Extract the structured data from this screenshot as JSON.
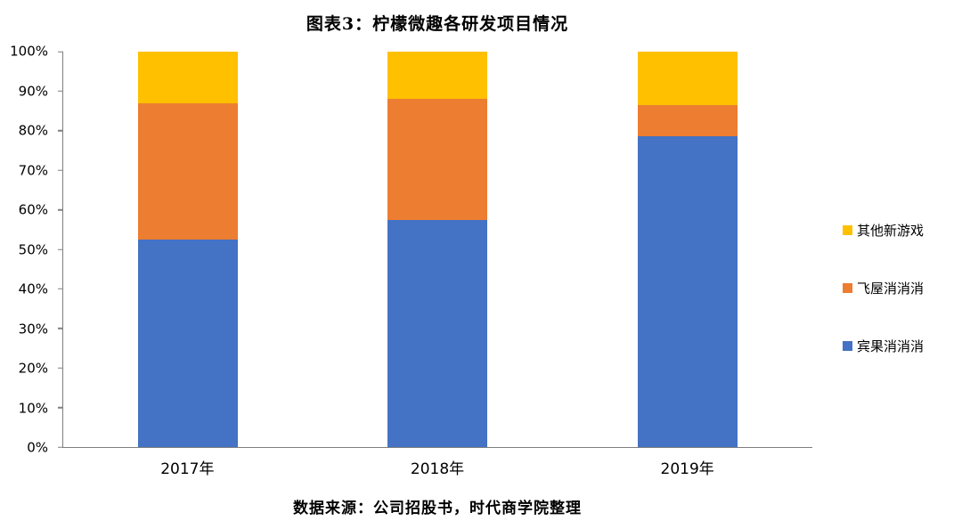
{
  "title": "图表3：柠檬微趣各研发项目情况",
  "source_note": "数据来源：公司招股书，时代商学院整理",
  "chart_data": {
    "type": "bar",
    "stacked": true,
    "percent_stacked": true,
    "title": "图表3：柠檬微趣各研发项目情况",
    "categories": [
      "2017年",
      "2018年",
      "2019年"
    ],
    "series": [
      {
        "name": "宾果消消消",
        "color": "#4472C4",
        "values": [
          52.5,
          57.5,
          78.5
        ]
      },
      {
        "name": "飞屋消消消",
        "color": "#ED7D31",
        "values": [
          34.5,
          30.5,
          8
        ]
      },
      {
        "name": "其他新游戏",
        "color": "#FFC000",
        "values": [
          13,
          12,
          13.5
        ]
      }
    ],
    "legend_order_top_to_bottom": [
      "其他新游戏",
      "飞屋消消消",
      "宾果消消消"
    ],
    "legend_position": "right",
    "xlabel": "",
    "ylabel": "",
    "ylim": [
      0,
      100
    ],
    "ytick_step": 10,
    "ytick_labels": [
      "0%",
      "10%",
      "20%",
      "30%",
      "40%",
      "50%",
      "60%",
      "70%",
      "80%",
      "90%",
      "100%"
    ],
    "grid": false,
    "axis_color": "#7f7f7f"
  }
}
